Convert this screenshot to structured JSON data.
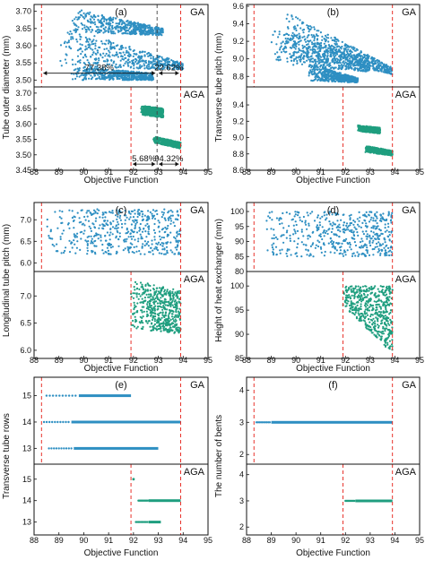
{
  "colors": {
    "ga": "#2e8fc2",
    "aga": "#1f9e7f",
    "guide": "#e8322b",
    "axis": "#111111"
  },
  "chart_data": [
    {
      "id": "a",
      "type": "scatter",
      "title": "(a)",
      "xlabel": "Objective Function",
      "ylabel": "Tube outer diameter (mm)",
      "xlim": [
        88,
        95
      ],
      "xticks": [
        88,
        89,
        90,
        91,
        92,
        93,
        94,
        95
      ],
      "ga": {
        "label": "GA",
        "ylim": [
          3.48,
          3.72
        ],
        "yticks": [
          3.5,
          3.55,
          3.6,
          3.65,
          3.7
        ],
        "series": [
          {
            "x0": 89.5,
            "x1": 93.2,
            "y0": [
              3.64,
              3.71
            ],
            "y1": [
              3.63,
              3.65
            ]
          },
          {
            "x0": 89.0,
            "x1": 94.0,
            "y0": [
              3.54,
              3.66
            ],
            "y1": [
              3.53,
              3.55
            ]
          },
          {
            "x0": 89.5,
            "x1": 92.8,
            "y0": [
              3.5,
              3.54
            ],
            "y1": [
              3.5,
              3.52
            ]
          }
        ],
        "guides": [
          88.3,
          93.9
        ],
        "annotations": [
          {
            "text": "77.38%",
            "x_from": 88.3,
            "x_to": 92.95,
            "y": 3.52
          },
          {
            "text": "22.62%",
            "x_from": 92.95,
            "x_to": 93.9,
            "y": 3.52
          }
        ]
      },
      "aga": {
        "label": "AGA",
        "ylim": [
          3.45,
          3.72
        ],
        "yticks": [
          3.45,
          3.5,
          3.55,
          3.6,
          3.65,
          3.7
        ],
        "series": [
          {
            "x0": 92.3,
            "x1": 93.2,
            "y0": [
              3.63,
              3.66
            ],
            "y1": [
              3.62,
              3.65
            ]
          },
          {
            "x0": 92.8,
            "x1": 93.9,
            "y0": [
              3.54,
              3.56
            ],
            "y1": [
              3.52,
              3.54
            ]
          }
        ],
        "guides": [
          91.9,
          93.9
        ],
        "annotations": [
          {
            "text": "5.68%",
            "x_from": 91.9,
            "x_to": 92.95,
            "y": 3.47
          },
          {
            "text": "94.32%",
            "x_from": 92.95,
            "x_to": 93.9,
            "y": 3.47
          }
        ]
      },
      "divider_x": 92.95
    },
    {
      "id": "b",
      "type": "scatter",
      "title": "(b)",
      "xlabel": "Objective Function",
      "ylabel": "Transverse tube pitch (mm)",
      "xlim": [
        88,
        95
      ],
      "xticks": [
        88,
        89,
        90,
        91,
        92,
        93,
        94,
        95
      ],
      "ga": {
        "label": "GA",
        "ylim": [
          8.68,
          9.62
        ],
        "yticks": [
          8.8,
          9.0,
          9.2,
          9.4,
          9.6
        ],
        "series": [
          {
            "x0": 89.5,
            "x1": 93.9,
            "y0": [
              9.1,
              9.55
            ],
            "y1": [
              8.82,
              8.9
            ]
          },
          {
            "x0": 89.0,
            "x1": 93.0,
            "y0": [
              8.95,
              9.35
            ],
            "y1": [
              8.85,
              9.0
            ]
          },
          {
            "x0": 90.5,
            "x1": 92.5,
            "y0": [
              8.75,
              8.95
            ],
            "y1": [
              8.73,
              8.78
            ]
          }
        ],
        "guides": [
          88.3,
          93.9
        ]
      },
      "aga": {
        "label": "AGA",
        "ylim": [
          8.6,
          9.62
        ],
        "yticks": [
          8.6,
          8.8,
          9.0,
          9.2,
          9.4
        ],
        "series": [
          {
            "x0": 92.5,
            "x1": 93.4,
            "y0": [
              9.08,
              9.15
            ],
            "y1": [
              9.05,
              9.12
            ]
          },
          {
            "x0": 92.8,
            "x1": 93.9,
            "y0": [
              8.82,
              8.9
            ],
            "y1": [
              8.78,
              8.84
            ]
          }
        ],
        "guides": [
          91.9,
          93.9
        ]
      }
    },
    {
      "id": "c",
      "type": "scatter",
      "title": "(c)",
      "xlabel": "Objective Function",
      "ylabel": "Longitudinal tube pitch (mm)",
      "xlim": [
        88,
        95
      ],
      "xticks": [
        88,
        89,
        90,
        91,
        92,
        93,
        94,
        95
      ],
      "ga": {
        "label": "GA",
        "ylim": [
          5.8,
          7.4
        ],
        "yticks": [
          6.0,
          6.5,
          7.0
        ],
        "series": [
          {
            "x0": 88.5,
            "x1": 93.9,
            "y0": [
              6.2,
              7.25
            ],
            "y1": [
              6.2,
              7.25
            ]
          }
        ],
        "guides": [
          88.3,
          93.9
        ]
      },
      "aga": {
        "label": "AGA",
        "ylim": [
          5.85,
          7.45
        ],
        "yticks": [
          6.0,
          6.5,
          7.0
        ],
        "series": [
          {
            "x0": 91.9,
            "x1": 93.9,
            "y0": [
              6.4,
              7.3
            ],
            "y1": [
              6.3,
              7.1
            ]
          }
        ],
        "guides": [
          91.9,
          93.9
        ]
      }
    },
    {
      "id": "d",
      "type": "scatter",
      "title": "(d)",
      "xlabel": "Objective Function",
      "ylabel": "Height of heat exchanger (mm)",
      "xlim": [
        88,
        95
      ],
      "xticks": [
        88,
        89,
        90,
        91,
        92,
        93,
        94,
        95
      ],
      "ga": {
        "label": "GA",
        "ylim": [
          80,
          103
        ],
        "yticks": [
          80,
          85,
          90,
          95,
          100
        ],
        "series": [
          {
            "x0": 88.8,
            "x1": 93.9,
            "y0": [
              85,
              100
            ],
            "y1": [
              85,
              100
            ]
          }
        ],
        "guides": [
          88.3,
          93.9
        ]
      },
      "aga": {
        "label": "AGA",
        "ylim": [
          85,
          103
        ],
        "yticks": [
          85,
          90,
          95,
          100
        ],
        "series": [
          {
            "x0": 91.9,
            "x1": 93.9,
            "y0": [
              96,
              100
            ],
            "y1": [
              86,
              100
            ]
          }
        ],
        "guides": [
          91.9,
          93.9
        ]
      }
    },
    {
      "id": "e",
      "type": "scatter",
      "title": "(e)",
      "xlabel": "Objective Function",
      "ylabel": "Transverse tube rows",
      "xlim": [
        88,
        95
      ],
      "xticks": [
        88,
        89,
        90,
        91,
        92,
        93,
        94,
        95
      ],
      "ga": {
        "label": "GA",
        "ylim": [
          12.4,
          15.7
        ],
        "yticks": [
          13,
          14,
          15
        ],
        "rows": [
          {
            "y": 15,
            "x0": 88.5,
            "x1": 91.9,
            "dense_from": 89.8
          },
          {
            "y": 14,
            "x0": 88.4,
            "x1": 93.9,
            "dense_from": 89.5
          },
          {
            "y": 13,
            "x0": 88.6,
            "x1": 93.0,
            "dense_from": 89.6
          }
        ],
        "guides": [
          88.3,
          93.9
        ]
      },
      "aga": {
        "label": "AGA",
        "ylim": [
          12.4,
          15.7
        ],
        "yticks": [
          13,
          14,
          15
        ],
        "rows": [
          {
            "y": 15,
            "x0": 92.0,
            "x1": 92.0,
            "dense_from": 92.0
          },
          {
            "y": 14,
            "x0": 92.2,
            "x1": 93.9,
            "dense_from": 92.6
          },
          {
            "y": 13,
            "x0": 92.1,
            "x1": 93.1,
            "dense_from": 92.6
          }
        ],
        "guides": [
          91.9,
          93.9
        ]
      }
    },
    {
      "id": "f",
      "type": "scatter",
      "title": "(f)",
      "xlabel": "Objective Function",
      "ylabel": "The number of bents",
      "xlim": [
        88,
        95
      ],
      "xticks": [
        88,
        89,
        90,
        91,
        92,
        93,
        94,
        95
      ],
      "ga": {
        "label": "GA",
        "ylim": [
          1.7,
          4.4
        ],
        "yticks": [
          2,
          3,
          4
        ],
        "rows": [
          {
            "y": 3,
            "x0": 88.4,
            "x1": 93.9,
            "dense_from": 89.0
          }
        ],
        "guides": [
          88.3,
          93.9
        ]
      },
      "aga": {
        "label": "AGA",
        "ylim": [
          1.7,
          4.4
        ],
        "yticks": [
          2,
          3,
          4
        ],
        "rows": [
          {
            "y": 3,
            "x0": 92.0,
            "x1": 93.9,
            "dense_from": 92.4
          }
        ],
        "guides": [
          91.9,
          93.9
        ]
      }
    }
  ]
}
